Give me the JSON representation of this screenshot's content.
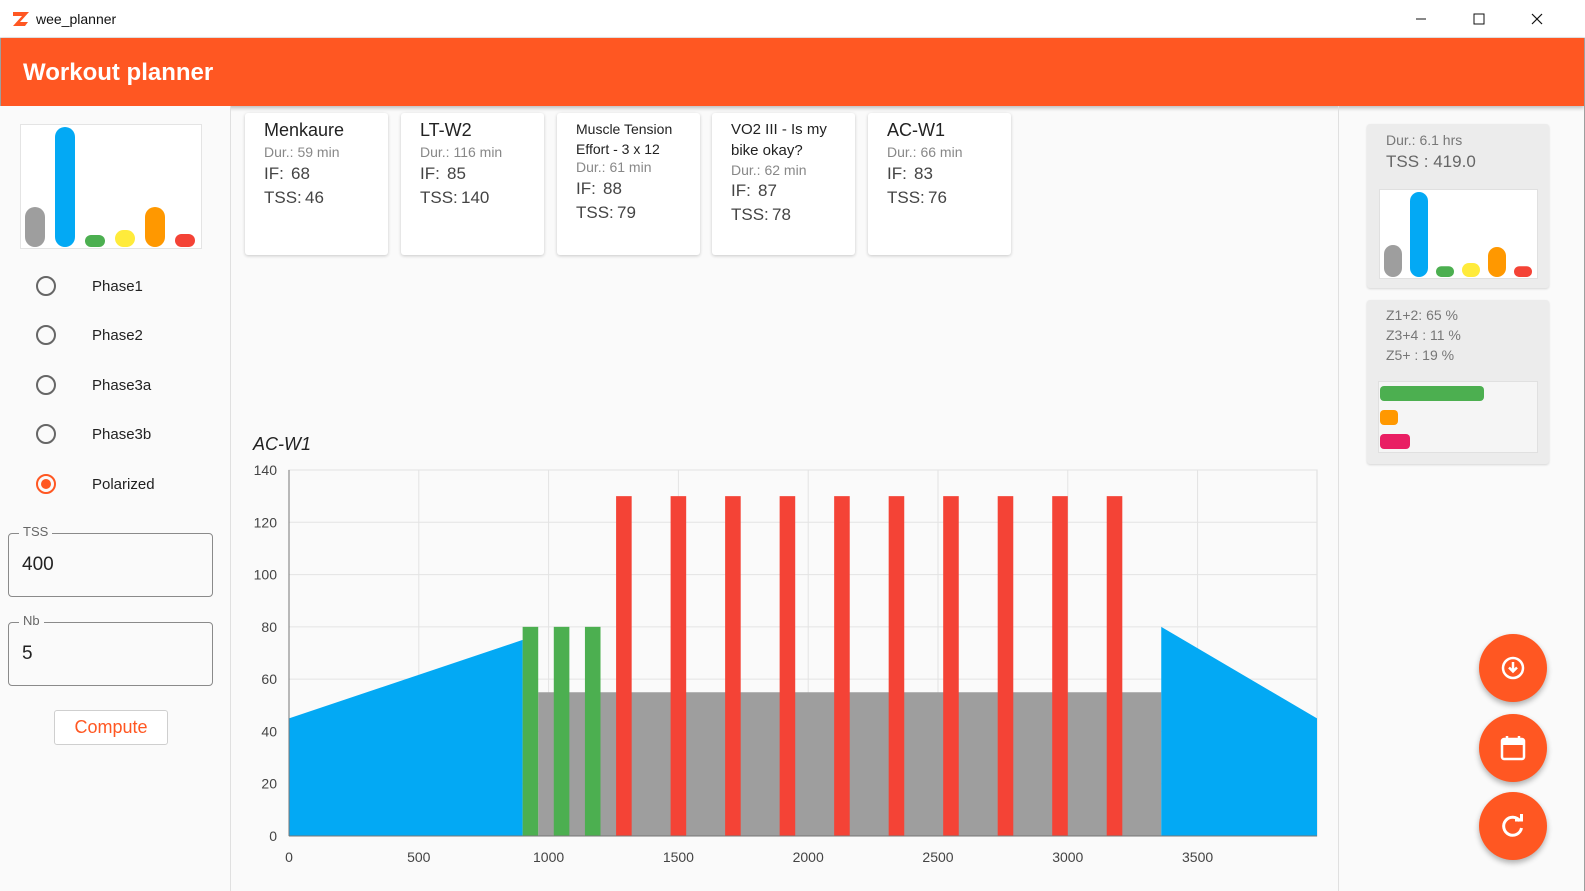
{
  "window": {
    "title": "wee_planner"
  },
  "appbar": {
    "title": "Workout planner"
  },
  "left": {
    "mini_chart": {
      "values": [
        40,
        120,
        10,
        17,
        40,
        13
      ],
      "colors": [
        "#9e9e9e",
        "#03a9f4",
        "#4caf50",
        "#ffeb3b",
        "#ff9800",
        "#f44336"
      ]
    },
    "phases": [
      {
        "label": "Phase1",
        "checked": false
      },
      {
        "label": "Phase2",
        "checked": false
      },
      {
        "label": "Phase3a",
        "checked": false
      },
      {
        "label": "Phase3b",
        "checked": false
      },
      {
        "label": "Polarized",
        "checked": true
      }
    ],
    "tss": {
      "label": "TSS",
      "value": "400"
    },
    "nb": {
      "label": "Nb",
      "value": "5"
    },
    "compute_label": "Compute"
  },
  "workouts": [
    {
      "name": "Menkaure",
      "duration": "Dur.: 59 min",
      "if_label": "IF:",
      "if_value": "68",
      "tss_label": "TSS:",
      "tss_value": "46"
    },
    {
      "name": "LT-W2",
      "duration": "Dur.: 116 min",
      "if_label": "IF:",
      "if_value": "85",
      "tss_label": "TSS:",
      "tss_value": "140"
    },
    {
      "name": "Muscle Tension Effort - 3 x 12",
      "duration": "Dur.: 61 min",
      "if_label": "IF:",
      "if_value": "88",
      "tss_label": "TSS:",
      "tss_value": "79"
    },
    {
      "name": "VO2 III - Is my bike okay?",
      "duration": "Dur.: 62 min",
      "if_label": "IF:",
      "if_value": "87",
      "tss_label": "TSS:",
      "tss_value": "78"
    },
    {
      "name": "AC-W1",
      "duration": "Dur.: 66 min",
      "if_label": "IF:",
      "if_value": "83",
      "tss_label": "TSS:",
      "tss_value": "76"
    }
  ],
  "summary": {
    "duration": "Dur.: 6.1 hrs",
    "tss": "TSS :  419.0",
    "chart": {
      "values": [
        32,
        85,
        6,
        14,
        30,
        3
      ],
      "colors": [
        "#9e9e9e",
        "#03a9f4",
        "#4caf50",
        "#ffeb3b",
        "#ff9800",
        "#f44336"
      ]
    }
  },
  "zones": {
    "z12": "Z1+2: 65 %",
    "z34": "Z3+4 : 11 %",
    "z5": "Z5+  : 19 %",
    "bars": [
      {
        "pct": 65,
        "color": "#4caf50"
      },
      {
        "pct": 11,
        "color": "#ff9800"
      },
      {
        "pct": 19,
        "color": "#e91e63"
      }
    ]
  },
  "fabs": [
    {
      "icon": "download-icon"
    },
    {
      "icon": "calendar-icon"
    },
    {
      "icon": "refresh-icon"
    }
  ],
  "chart_data": {
    "type": "area",
    "title": "AC-W1",
    "xlim": [
      0,
      3960
    ],
    "ylim": [
      0,
      140
    ],
    "xticks": [
      0,
      500,
      1000,
      1500,
      2000,
      2500,
      3000,
      3500
    ],
    "yticks": [
      0,
      20,
      40,
      60,
      80,
      100,
      120,
      140
    ],
    "grid": true,
    "segments": [
      {
        "x0": 0,
        "x1": 900,
        "y0": 45,
        "y1": 75,
        "color": "#03a9f4"
      },
      {
        "x0": 960,
        "x1": 3360,
        "y0": 55,
        "y1": 55,
        "color": "#9e9e9e"
      },
      {
        "x0": 3360,
        "x1": 3960,
        "y0": 80,
        "y1": 45,
        "color": "#03a9f4"
      }
    ],
    "intervals": [
      {
        "x0": 900,
        "x1": 960,
        "y": 80,
        "color": "#4caf50"
      },
      {
        "x0": 1020,
        "x1": 1080,
        "y": 80,
        "color": "#4caf50"
      },
      {
        "x0": 1140,
        "x1": 1200,
        "y": 80,
        "color": "#4caf50"
      },
      {
        "x0": 1260,
        "x1": 1320,
        "y": 130,
        "color": "#f44336"
      },
      {
        "x0": 1470,
        "x1": 1530,
        "y": 130,
        "color": "#f44336"
      },
      {
        "x0": 1680,
        "x1": 1740,
        "y": 130,
        "color": "#f44336"
      },
      {
        "x0": 1890,
        "x1": 1950,
        "y": 130,
        "color": "#f44336"
      },
      {
        "x0": 2100,
        "x1": 2160,
        "y": 130,
        "color": "#f44336"
      },
      {
        "x0": 2310,
        "x1": 2370,
        "y": 130,
        "color": "#f44336"
      },
      {
        "x0": 2520,
        "x1": 2580,
        "y": 130,
        "color": "#f44336"
      },
      {
        "x0": 2730,
        "x1": 2790,
        "y": 130,
        "color": "#f44336"
      },
      {
        "x0": 2940,
        "x1": 3000,
        "y": 130,
        "color": "#f44336"
      },
      {
        "x0": 3150,
        "x1": 3210,
        "y": 130,
        "color": "#f44336"
      }
    ]
  }
}
